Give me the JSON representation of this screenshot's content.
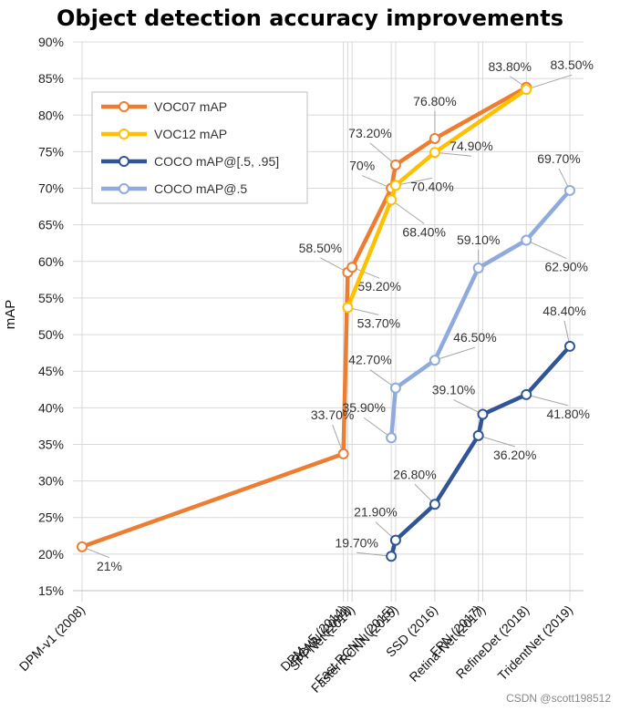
{
  "chart_data": {
    "type": "line",
    "title": "Object detection accuracy improvements",
    "xlabel": "",
    "ylabel": "mAP",
    "ylim": [
      15,
      90
    ],
    "yticks": [
      "15%",
      "20%",
      "25%",
      "30%",
      "35%",
      "40%",
      "45%",
      "50%",
      "55%",
      "60%",
      "65%",
      "70%",
      "75%",
      "80%",
      "85%",
      "90%"
    ],
    "categories": [
      "DPM-v1 (2008)",
      "DPM-v5 (2014)",
      "RCNN (2014)",
      "SPPNet (2014)",
      "Fast RCNN (2015)",
      "Faster RCNN (2015)",
      "SSD (2016)",
      "FPN (2017)",
      "Retina-Net (2017)",
      "RefineDet (2018)",
      "TridentNet (2019)"
    ],
    "category_years": [
      2008,
      2014,
      2014.1,
      2014.2,
      2015.1,
      2015.2,
      2016.1,
      2017.1,
      2017.2,
      2018.2,
      2019.2
    ],
    "series": [
      {
        "name": "VOC07 mAP",
        "color": "#ED7D31",
        "points": [
          [
            0,
            21
          ],
          [
            1,
            33.7
          ],
          [
            2,
            58.5
          ],
          [
            3,
            59.2
          ],
          [
            4,
            70
          ],
          [
            5,
            73.2
          ],
          [
            6,
            76.8
          ],
          [
            9,
            83.8
          ]
        ],
        "labels": [
          "21%",
          "33.70%",
          "58.50%",
          "59.20%",
          "70%",
          "73.20%",
          "76.80%",
          "83.80%"
        ]
      },
      {
        "name": "VOC12 mAP",
        "color": "#FFC000",
        "points": [
          [
            2,
            53.7
          ],
          [
            4,
            68.4
          ],
          [
            5,
            70.4
          ],
          [
            6,
            74.9
          ],
          [
            9,
            83.5
          ]
        ],
        "labels": [
          "53.70%",
          "68.40%",
          "70.40%",
          "74.90%",
          "83.50%"
        ]
      },
      {
        "name": "COCO mAP@[.5, .95]",
        "color": "#2F5597",
        "points": [
          [
            4,
            19.7
          ],
          [
            5,
            21.9
          ],
          [
            6,
            26.8
          ],
          [
            7,
            36.2
          ],
          [
            8,
            39.1
          ],
          [
            9,
            41.8
          ],
          [
            10,
            48.4
          ]
        ],
        "labels": [
          "19.70%",
          "21.90%",
          "26.80%",
          "36.20%",
          "39.10%",
          "41.80%",
          "48.40%"
        ]
      },
      {
        "name": "COCO mAP@.5",
        "color": "#8FAADC",
        "points": [
          [
            4,
            35.9
          ],
          [
            5,
            42.7
          ],
          [
            6,
            46.5
          ],
          [
            7,
            59.1
          ],
          [
            9,
            62.9
          ],
          [
            10,
            69.7
          ]
        ],
        "labels": [
          "35.90%",
          "42.70%",
          "46.50%",
          "59.10%",
          "62.90%",
          "69.70%"
        ]
      }
    ],
    "legend_position": "top-left",
    "grid": true
  },
  "watermark": "CSDN @scott198512"
}
